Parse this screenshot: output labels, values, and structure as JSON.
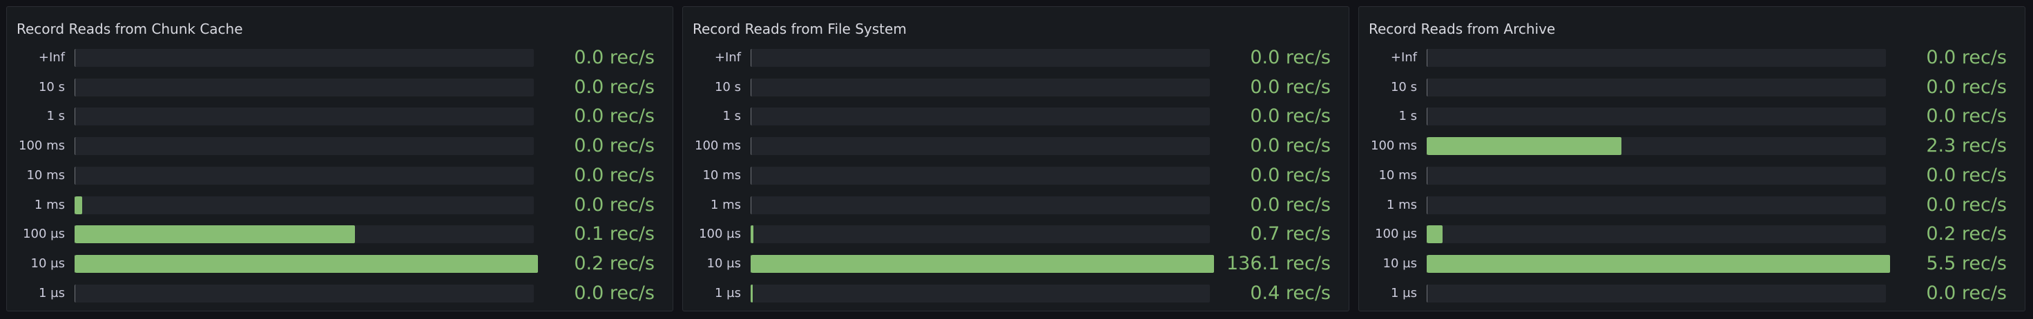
{
  "chart_data": [
    {
      "type": "bar",
      "orientation": "horizontal",
      "title": "Record Reads from Chunk Cache",
      "categories": [
        "+Inf",
        "10 s",
        "1 s",
        "100 ms",
        "10 ms",
        "1 ms",
        "100 µs",
        "10 µs",
        "1 µs"
      ],
      "labels": [
        "0.0 rec/s",
        "0.0 rec/s",
        "0.0 rec/s",
        "0.0 rec/s",
        "0.0 rec/s",
        "0.0 rec/s",
        "0.1 rec/s",
        "0.2 rec/s",
        "0.0 rec/s"
      ],
      "fill_fraction": [
        0,
        0,
        0,
        0,
        0,
        0.015,
        0.605,
        1,
        0
      ]
    },
    {
      "type": "bar",
      "orientation": "horizontal",
      "title": "Record Reads from File System",
      "categories": [
        "+Inf",
        "10 s",
        "1 s",
        "100 ms",
        "10 ms",
        "1 ms",
        "100 µs",
        "10 µs",
        "1 µs"
      ],
      "labels": [
        "0.0 rec/s",
        "0.0 rec/s",
        "0.0 rec/s",
        "0.0 rec/s",
        "0.0 rec/s",
        "0.0 rec/s",
        "0.7 rec/s",
        "136.1 rec/s",
        "0.4 rec/s"
      ],
      "fill_fraction": [
        0,
        0,
        0,
        0,
        0,
        0,
        0.005,
        1,
        0.003
      ]
    },
    {
      "type": "bar",
      "orientation": "horizontal",
      "title": "Record Reads from Archive",
      "categories": [
        "+Inf",
        "10 s",
        "1 s",
        "100 ms",
        "10 ms",
        "1 ms",
        "100 µs",
        "10 µs",
        "1 µs"
      ],
      "labels": [
        "0.0 rec/s",
        "0.0 rec/s",
        "0.0 rec/s",
        "2.3 rec/s",
        "0.0 rec/s",
        "0.0 rec/s",
        "0.2 rec/s",
        "5.5 rec/s",
        "0.0 rec/s"
      ],
      "fill_fraction": [
        0,
        0,
        0,
        0.42,
        0,
        0,
        0.033,
        1,
        0
      ]
    }
  ],
  "colors": {
    "bar": "#87bd73",
    "track": "#22252b",
    "background": "#111217",
    "panel": "#181b1f"
  }
}
